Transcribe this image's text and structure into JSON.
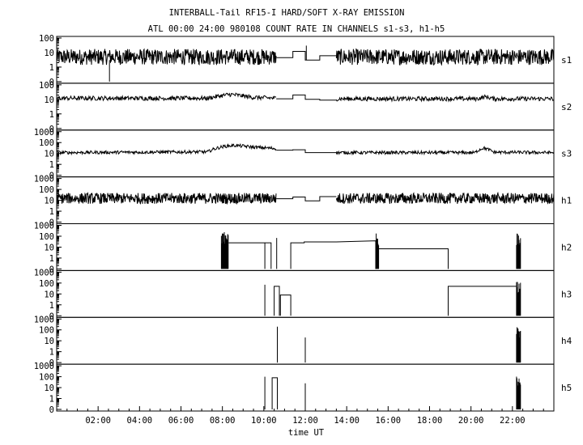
{
  "chart_data": {
    "type": "line",
    "title": "INTERBALL-Tail RF15-I HARD/SOFT X-RAY EMISSION",
    "subtitle": "ATL 00:00 24:00 980108  COUNT RATE IN CHANNELS s1-s3, h1-h5",
    "xlabel": "time UT",
    "xlim": [
      0,
      24
    ],
    "x_ticks": [
      {
        "value": 2,
        "label": "02:00"
      },
      {
        "value": 4,
        "label": "04:00"
      },
      {
        "value": 6,
        "label": "06:00"
      },
      {
        "value": 8,
        "label": "08:00"
      },
      {
        "value": 10,
        "label": "10:00"
      },
      {
        "value": 12,
        "label": "12:00"
      },
      {
        "value": 14,
        "label": "14:00"
      },
      {
        "value": 16,
        "label": "16:00"
      },
      {
        "value": 18,
        "label": "18:00"
      },
      {
        "value": 20,
        "label": "20:00"
      },
      {
        "value": 22,
        "label": "22:00"
      }
    ],
    "y_scale": "log",
    "grid": false,
    "panels": [
      {
        "name": "s1",
        "ylim": [
          0.1,
          100
        ],
        "y_ticks": [
          "100",
          "10",
          "1",
          "0"
        ],
        "segments": [
          {
            "kind": "noisy",
            "x": [
              0,
              10.6
            ],
            "level": 5,
            "amp": 0.55
          },
          {
            "kind": "step",
            "points": [
              [
                10.6,
                4.5
              ],
              [
                11.4,
                4.5
              ],
              [
                11.4,
                12
              ],
              [
                12.0,
                12
              ],
              [
                12.0,
                3
              ],
              [
                12.7,
                3
              ],
              [
                12.7,
                6
              ],
              [
                13.5,
                6
              ]
            ]
          },
          {
            "kind": "noisy",
            "x": [
              13.5,
              24
            ],
            "level": 5,
            "amp": 0.55
          },
          {
            "kind": "spike",
            "x": 2.55,
            "from": 3,
            "to": 0.1
          },
          {
            "kind": "spike",
            "x": 12.05,
            "from": 3,
            "to": 30
          }
        ]
      },
      {
        "name": "s2",
        "ylim": [
          0.1,
          100
        ],
        "y_ticks": [
          "100",
          "10",
          "1",
          "0"
        ],
        "segments": [
          {
            "kind": "profile",
            "x": [
              0,
              10.6
            ],
            "amp": 0.15,
            "points": [
              [
                0,
                12
              ],
              [
                7.3,
                12
              ],
              [
                8.4,
                22
              ],
              [
                9.4,
                14
              ],
              [
                10.6,
                12
              ]
            ]
          },
          {
            "kind": "step",
            "points": [
              [
                10.6,
                11
              ],
              [
                11.4,
                11
              ],
              [
                11.4,
                20
              ],
              [
                12.0,
                20
              ],
              [
                12.0,
                10
              ],
              [
                12.7,
                10
              ],
              [
                12.7,
                9
              ],
              [
                13.5,
                9
              ]
            ]
          },
          {
            "kind": "profile",
            "x": [
              13.5,
              24
            ],
            "amp": 0.15,
            "points": [
              [
                13.5,
                11
              ],
              [
                20.3,
                11
              ],
              [
                20.7,
                15
              ],
              [
                21.1,
                11
              ],
              [
                24,
                11
              ]
            ]
          }
        ]
      },
      {
        "name": "s3",
        "ylim": [
          0.1,
          1000
        ],
        "y_ticks": [
          "1000",
          "100",
          "10",
          "1",
          "0"
        ],
        "segments": [
          {
            "kind": "profile",
            "x": [
              0,
              10.6
            ],
            "amp": 0.15,
            "points": [
              [
                0,
                12
              ],
              [
                7.3,
                14
              ],
              [
                8.1,
                45
              ],
              [
                8.6,
                55
              ],
              [
                9.5,
                38
              ],
              [
                10.6,
                28
              ]
            ]
          },
          {
            "kind": "step",
            "points": [
              [
                10.6,
                20
              ],
              [
                11.4,
                20
              ],
              [
                11.4,
                22
              ],
              [
                12.0,
                22
              ],
              [
                12.0,
                12
              ],
              [
                13.5,
                12
              ]
            ]
          },
          {
            "kind": "profile",
            "x": [
              13.5,
              24
            ],
            "amp": 0.15,
            "points": [
              [
                13.5,
                12
              ],
              [
                20.2,
                12
              ],
              [
                20.6,
                32
              ],
              [
                21.1,
                13
              ],
              [
                24,
                12
              ]
            ]
          }
        ]
      },
      {
        "name": "h1",
        "ylim": [
          0.1,
          1000
        ],
        "y_ticks": [
          "1000",
          "100",
          "10",
          "1",
          "0"
        ],
        "segments": [
          {
            "kind": "noisy",
            "x": [
              0,
              10.6
            ],
            "level": 15,
            "amp": 0.5
          },
          {
            "kind": "step",
            "points": [
              [
                10.6,
                14
              ],
              [
                11.4,
                14
              ],
              [
                11.4,
                20
              ],
              [
                12.0,
                20
              ],
              [
                12.0,
                9
              ],
              [
                12.7,
                9
              ],
              [
                12.7,
                22
              ],
              [
                13.5,
                22
              ]
            ]
          },
          {
            "kind": "noisy",
            "x": [
              13.5,
              24
            ],
            "level": 15,
            "amp": 0.5
          }
        ]
      },
      {
        "name": "h2",
        "ylim": [
          0.1,
          1000
        ],
        "y_ticks": [
          "1000",
          "100",
          "10",
          "1",
          "0"
        ],
        "segments": [
          {
            "kind": "burst",
            "x": [
              7.95,
              8.3
            ],
            "max": 300
          },
          {
            "kind": "step",
            "points": [
              [
                8.3,
                25
              ],
              [
                10.05,
                25
              ],
              [
                10.05,
                0.1
              ],
              [
                10.05,
                25
              ],
              [
                10.35,
                25
              ],
              [
                10.35,
                0.1
              ]
            ]
          },
          {
            "kind": "spike",
            "x": 10.62,
            "from": 0.1,
            "to": 70
          },
          {
            "kind": "step",
            "points": [
              [
                11.3,
                0.1
              ],
              [
                11.3,
                25
              ],
              [
                11.95,
                25
              ],
              [
                11.95,
                30
              ],
              [
                13.5,
                30
              ],
              [
                15.4,
                38
              ],
              [
                15.4,
                0.1
              ]
            ]
          },
          {
            "kind": "burst",
            "x": [
              15.4,
              15.55
            ],
            "max": 200
          },
          {
            "kind": "step",
            "points": [
              [
                15.55,
                7
              ],
              [
                18.9,
                7
              ],
              [
                18.9,
                0.1
              ]
            ]
          },
          {
            "kind": "burst",
            "x": [
              22.2,
              22.4
            ],
            "max": 200
          }
        ]
      },
      {
        "name": "h3",
        "ylim": [
          0.1,
          1000
        ],
        "y_ticks": [
          "1000",
          "100",
          "10",
          "1",
          "0"
        ],
        "segments": [
          {
            "kind": "spike",
            "x": 10.05,
            "from": 0.1,
            "to": 70
          },
          {
            "kind": "step",
            "points": [
              [
                10.5,
                0.1
              ],
              [
                10.5,
                50
              ],
              [
                10.75,
                50
              ],
              [
                10.75,
                0.1
              ]
            ]
          },
          {
            "kind": "step",
            "points": [
              [
                10.8,
                0.1
              ],
              [
                10.8,
                8
              ],
              [
                11.3,
                8
              ],
              [
                11.3,
                0.1
              ]
            ]
          },
          {
            "kind": "step",
            "points": [
              [
                18.9,
                0.1
              ],
              [
                18.9,
                50
              ],
              [
                22.2,
                50
              ]
            ]
          },
          {
            "kind": "burst",
            "x": [
              22.2,
              22.4
            ],
            "max": 200
          }
        ]
      },
      {
        "name": "h4",
        "ylim": [
          0.1,
          1000
        ],
        "y_ticks": [
          "1000",
          "100",
          "10",
          "1",
          "0"
        ],
        "segments": [
          {
            "kind": "spike",
            "x": 10.65,
            "from": 0.1,
            "to": 200
          },
          {
            "kind": "spike",
            "x": 12.0,
            "from": 0.1,
            "to": 20
          },
          {
            "kind": "burst",
            "x": [
              22.2,
              22.4
            ],
            "max": 200
          }
        ]
      },
      {
        "name": "h5",
        "ylim": [
          0.1,
          1000
        ],
        "y_ticks": [
          "1000",
          "100",
          "10",
          "1",
          "0"
        ],
        "segments": [
          {
            "kind": "spike",
            "x": 10.05,
            "from": 0.1,
            "to": 100
          },
          {
            "kind": "step",
            "points": [
              [
                10.4,
                0.1
              ],
              [
                10.4,
                80
              ],
              [
                10.65,
                80
              ],
              [
                10.65,
                0.1
              ]
            ]
          },
          {
            "kind": "spike",
            "x": 12.0,
            "from": 0.1,
            "to": 25
          },
          {
            "kind": "burst",
            "x": [
              22.2,
              22.4
            ],
            "max": 200
          }
        ]
      }
    ]
  }
}
